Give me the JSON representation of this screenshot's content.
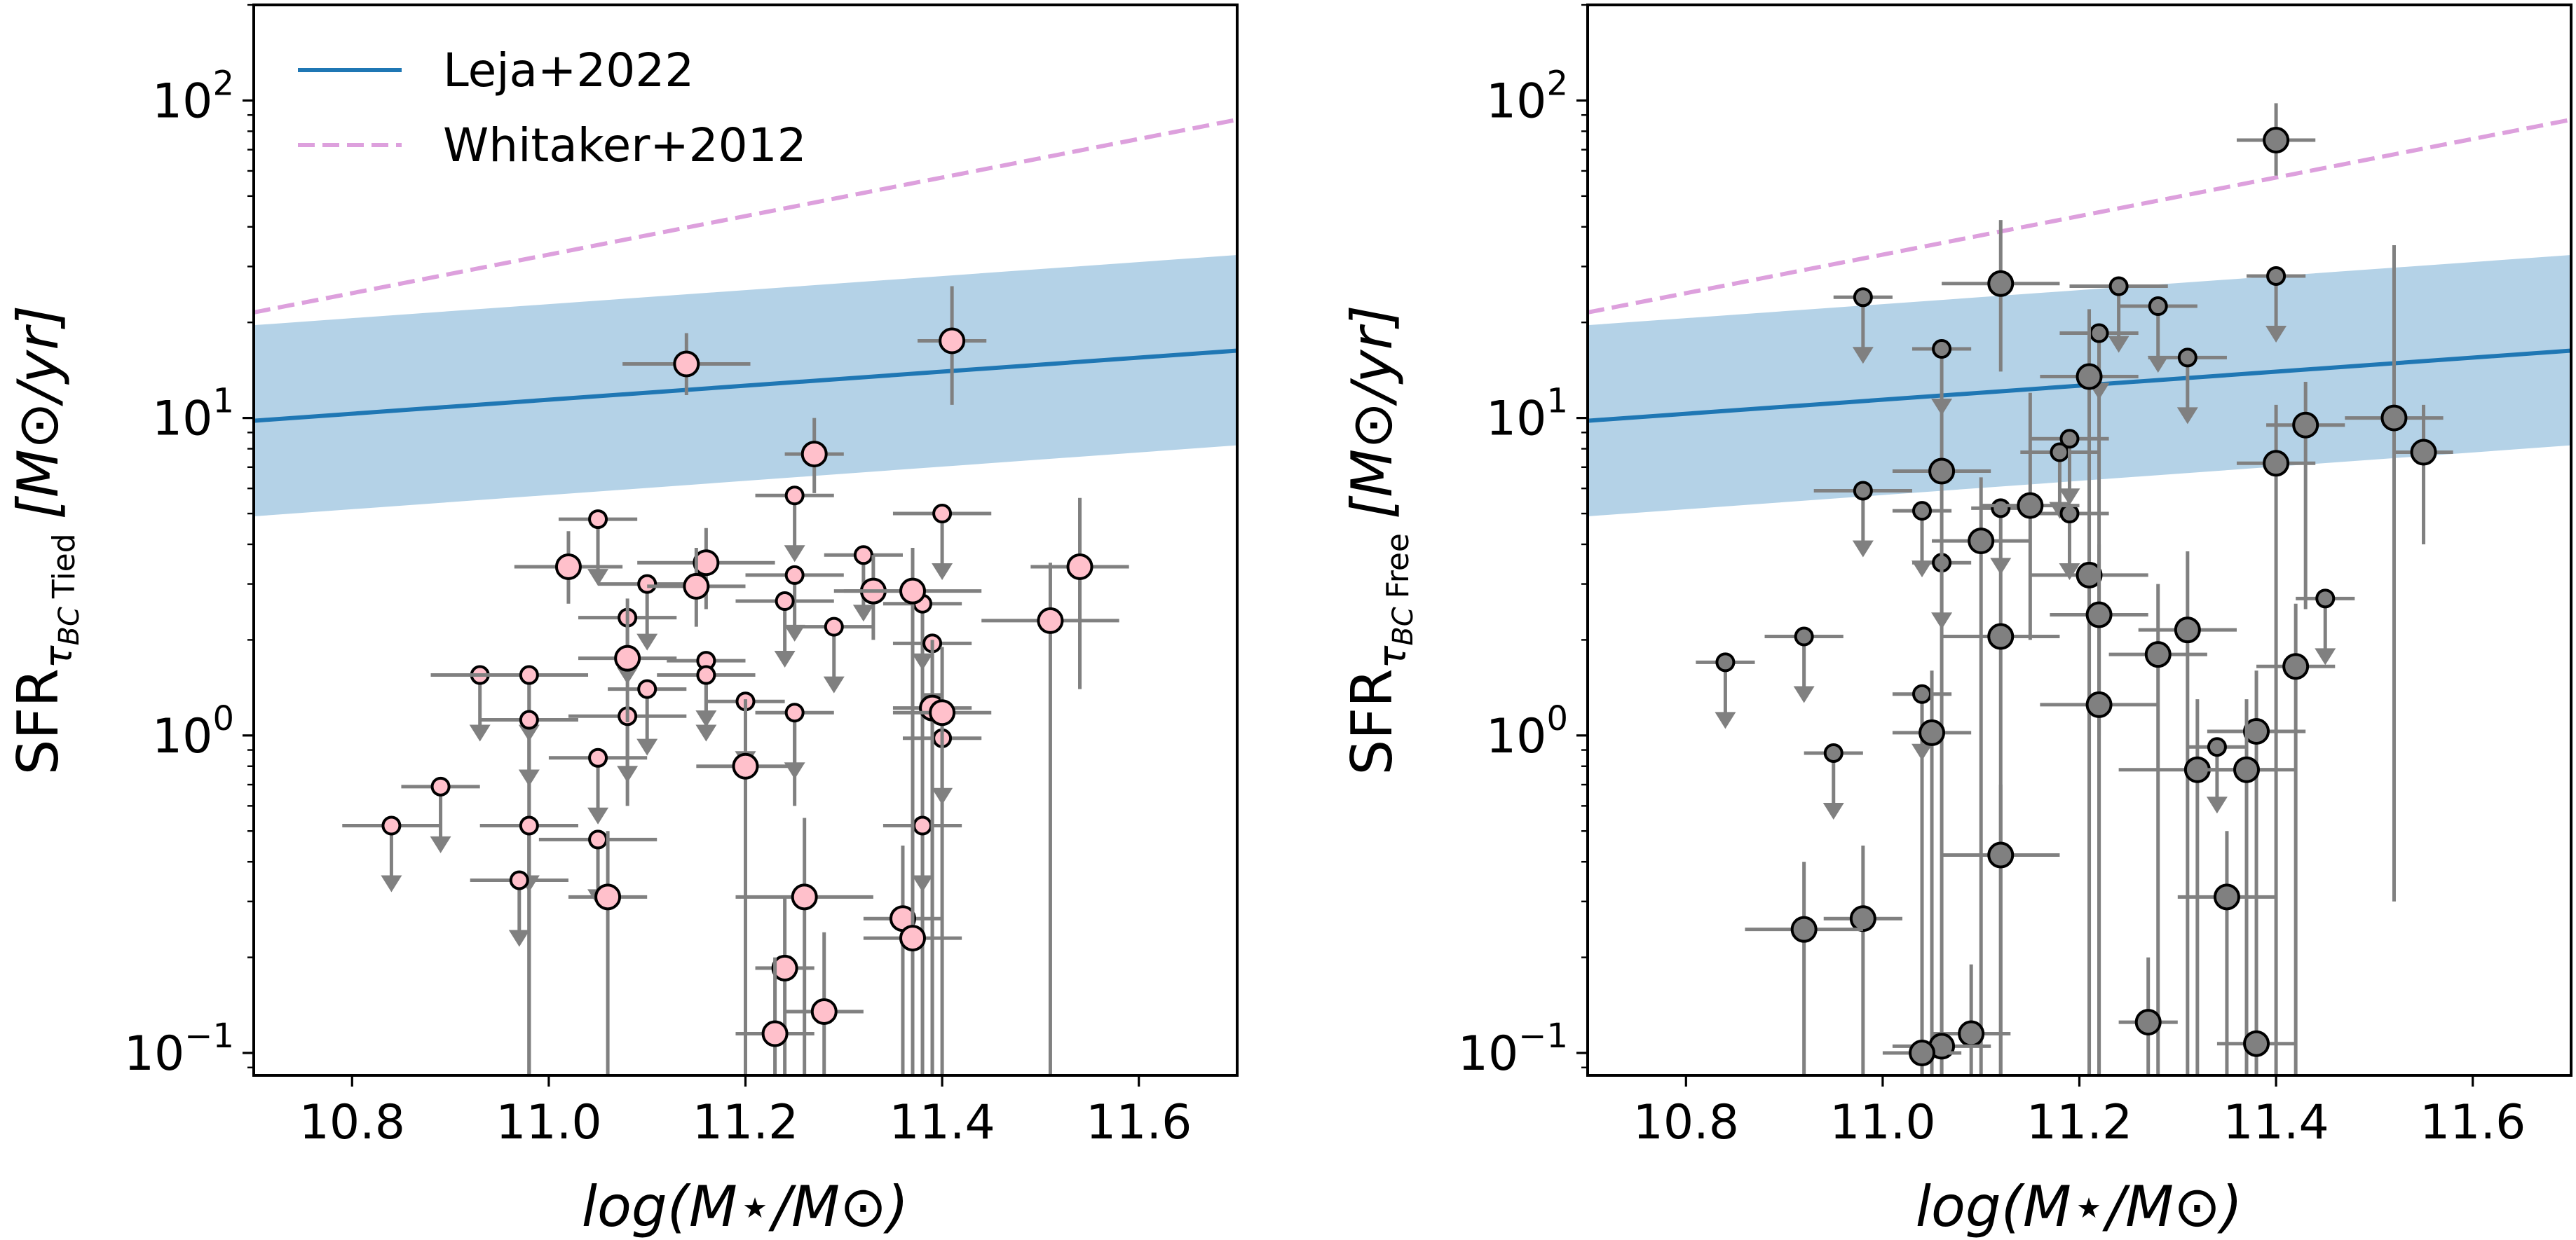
{
  "colors": {
    "leja_line": "#1f77b4",
    "leja_band": "#b4d2e7",
    "whitaker_line": "#dda0dd",
    "err_bar": "#808080",
    "left_marker": "#ffc0cb",
    "right_marker": "#808080"
  },
  "legend": {
    "leja": "Leja+2022",
    "whitaker": "Whitaker+2012"
  },
  "chart_data": [
    {
      "type": "scatter",
      "panel": "left",
      "xlabel": "log(M⋆/M⊙)",
      "ylabel": "SFR_{τBC Tied} [M⊙/yr]",
      "ylabel_main": "SFR",
      "ylabel_sub": "τ",
      "ylabel_subsub": "BC",
      "ylabel_sub_tail": "Tied",
      "ylabel_unit": "[M⊙/yr]",
      "xlim": [
        10.7,
        11.7
      ],
      "ylim": [
        0.085,
        200
      ],
      "yscale": "log",
      "xticks": [
        "10.8",
        "11.0",
        "11.2",
        "11.4",
        "11.6"
      ],
      "yticks": [
        {
          "value": 100,
          "base": "10",
          "exp": "2"
        },
        {
          "value": 10,
          "base": "10",
          "exp": "1"
        },
        {
          "value": 1,
          "base": "10",
          "exp": "0"
        },
        {
          "value": 0.1,
          "base": "10",
          "exp": "−1"
        }
      ],
      "leja": {
        "x": [
          10.7,
          11.7
        ],
        "y": [
          9.8,
          16.3
        ],
        "lower": [
          4.9,
          8.2
        ],
        "upper": [
          19.6,
          32.6
        ]
      },
      "whitaker": {
        "x": [
          10.7,
          11.7
        ],
        "y": [
          21.5,
          87
        ]
      },
      "detections": [
        {
          "x": 11.14,
          "y": 14.8,
          "xerr": 0.065,
          "ylo": 11.8,
          "yhi": 18.5
        },
        {
          "x": 11.41,
          "y": 17.5,
          "xerr": 0.035,
          "ylo": 11.0,
          "yhi": 26.0
        },
        {
          "x": 11.27,
          "y": 7.7,
          "xerr": 0.03,
          "ylo": 5.8,
          "yhi": 10.0
        },
        {
          "x": 11.02,
          "y": 3.4,
          "xerr": 0.055,
          "ylo": 2.6,
          "yhi": 4.4
        },
        {
          "x": 11.16,
          "y": 3.5,
          "xerr": 0.07,
          "ylo": 2.5,
          "yhi": 4.5
        },
        {
          "x": 11.15,
          "y": 2.95,
          "xerr": 0.05,
          "ylo": 2.2,
          "yhi": 3.9
        },
        {
          "x": 11.33,
          "y": 2.85,
          "xerr": 0.04,
          "ylo": 2.0,
          "yhi": 3.7
        },
        {
          "x": 11.37,
          "y": 2.85,
          "xerr": 0.07,
          "ylo": 0.085,
          "yhi": 3.9
        },
        {
          "x": 11.54,
          "y": 3.4,
          "xerr": 0.05,
          "ylo": 1.4,
          "yhi": 5.6
        },
        {
          "x": 11.51,
          "y": 2.3,
          "xerr": 0.07,
          "ylo": 0.085,
          "yhi": 3.5
        },
        {
          "x": 11.08,
          "y": 1.75,
          "xerr": 0.05,
          "ylo": 1.1,
          "yhi": 2.7
        },
        {
          "x": 11.39,
          "y": 1.22,
          "xerr": 0.04,
          "ylo": 0.085,
          "yhi": 2.0
        },
        {
          "x": 11.4,
          "y": 1.18,
          "xerr": 0.05,
          "ylo": 0.085,
          "yhi": 1.9
        },
        {
          "x": 11.2,
          "y": 0.8,
          "xerr": 0.05,
          "ylo": 0.085,
          "yhi": 1.3
        },
        {
          "x": 11.06,
          "y": 0.31,
          "xerr": 0.04,
          "ylo": 0.085,
          "yhi": 0.5
        },
        {
          "x": 11.26,
          "y": 0.31,
          "xerr": 0.07,
          "ylo": 0.085,
          "yhi": 0.55
        },
        {
          "x": 11.36,
          "y": 0.265,
          "xerr": 0.04,
          "ylo": 0.085,
          "yhi": 0.45
        },
        {
          "x": 11.37,
          "y": 0.23,
          "xerr": 0.05,
          "ylo": 0.085,
          "yhi": 0.4
        },
        {
          "x": 11.24,
          "y": 0.185,
          "xerr": 0.03,
          "ylo": 0.085,
          "yhi": 0.31
        },
        {
          "x": 11.28,
          "y": 0.135,
          "xerr": 0.04,
          "ylo": 0.085,
          "yhi": 0.24
        },
        {
          "x": 11.23,
          "y": 0.115,
          "xerr": 0.04,
          "ylo": 0.085,
          "yhi": 0.2
        }
      ],
      "upper_limits": [
        {
          "x": 10.84,
          "y": 0.52,
          "xerr": 0.05
        },
        {
          "x": 10.89,
          "y": 0.69,
          "xerr": 0.04
        },
        {
          "x": 10.93,
          "y": 1.55,
          "xerr": 0.05
        },
        {
          "x": 10.98,
          "y": 1.55,
          "xerr": 0.06,
          "ylo": 0.085
        },
        {
          "x": 10.98,
          "y": 1.12,
          "xerr": 0.05,
          "ylo": 0.085
        },
        {
          "x": 10.98,
          "y": 0.52,
          "xerr": 0.05,
          "ylo": 0.085
        },
        {
          "x": 10.97,
          "y": 0.35,
          "xerr": 0.05
        },
        {
          "x": 11.05,
          "y": 4.8,
          "xerr": 0.04
        },
        {
          "x": 11.1,
          "y": 3.0,
          "xerr": 0.05
        },
        {
          "x": 11.08,
          "y": 2.35,
          "xerr": 0.05
        },
        {
          "x": 11.1,
          "y": 1.4,
          "xerr": 0.04
        },
        {
          "x": 11.08,
          "y": 1.15,
          "xerr": 0.06,
          "ylo": 0.6
        },
        {
          "x": 11.05,
          "y": 0.85,
          "xerr": 0.05
        },
        {
          "x": 11.05,
          "y": 0.47,
          "xerr": 0.06
        },
        {
          "x": 11.16,
          "y": 1.72,
          "xerr": 0.04
        },
        {
          "x": 11.16,
          "y": 1.55,
          "xerr": 0.05
        },
        {
          "x": 11.2,
          "y": 1.28,
          "xerr": 0.04,
          "ylo": 0.7
        },
        {
          "x": 11.25,
          "y": 5.7,
          "xerr": 0.04
        },
        {
          "x": 11.25,
          "y": 3.2,
          "xerr": 0.05
        },
        {
          "x": 11.24,
          "y": 2.65,
          "xerr": 0.05
        },
        {
          "x": 11.25,
          "y": 1.18,
          "xerr": 0.04,
          "ylo": 0.6
        },
        {
          "x": 11.32,
          "y": 3.7,
          "xerr": 0.04
        },
        {
          "x": 11.29,
          "y": 2.2,
          "xerr": 0.04
        },
        {
          "x": 11.4,
          "y": 5.0,
          "xerr": 0.05
        },
        {
          "x": 11.38,
          "y": 2.6,
          "xerr": 0.04,
          "ylo": 0.085
        },
        {
          "x": 11.39,
          "y": 1.95,
          "xerr": 0.04,
          "ylo": 0.085
        },
        {
          "x": 11.4,
          "y": 0.98,
          "xerr": 0.04
        },
        {
          "x": 11.38,
          "y": 0.52,
          "xerr": 0.04,
          "ylo": 0.085
        }
      ]
    },
    {
      "type": "scatter",
      "panel": "right",
      "xlabel": "log(M⋆/M⊙)",
      "ylabel": "SFR_{τBC Free} [M⊙/yr]",
      "ylabel_main": "SFR",
      "ylabel_sub": "τ",
      "ylabel_subsub": "BC",
      "ylabel_sub_tail": "Free",
      "ylabel_unit": "[M⊙/yr]",
      "xlim": [
        10.7,
        11.7
      ],
      "ylim": [
        0.085,
        200
      ],
      "yscale": "log",
      "xticks": [
        "10.8",
        "11.0",
        "11.2",
        "11.4",
        "11.6"
      ],
      "yticks": [
        {
          "value": 100,
          "base": "10",
          "exp": "2"
        },
        {
          "value": 10,
          "base": "10",
          "exp": "1"
        },
        {
          "value": 1,
          "base": "10",
          "exp": "0"
        },
        {
          "value": 0.1,
          "base": "10",
          "exp": "−1"
        }
      ],
      "leja": {
        "x": [
          10.7,
          11.7
        ],
        "y": [
          9.8,
          16.3
        ],
        "lower": [
          4.9,
          8.2
        ],
        "upper": [
          19.6,
          32.6
        ]
      },
      "whitaker": {
        "x": [
          10.7,
          11.7
        ],
        "y": [
          21.5,
          87
        ]
      },
      "detections": [
        {
          "x": 11.4,
          "y": 75,
          "xerr": 0.04,
          "ylo": 58,
          "yhi": 98
        },
        {
          "x": 11.12,
          "y": 26.5,
          "xerr": 0.06,
          "ylo": 14,
          "yhi": 42
        },
        {
          "x": 11.21,
          "y": 13.5,
          "xerr": 0.05,
          "ylo": 0.085,
          "yhi": 22
        },
        {
          "x": 11.06,
          "y": 6.8,
          "xerr": 0.05,
          "ylo": 0.085,
          "yhi": 11
        },
        {
          "x": 11.4,
          "y": 7.2,
          "xerr": 0.04,
          "ylo": 0.085,
          "yhi": 11
        },
        {
          "x": 11.43,
          "y": 9.5,
          "xerr": 0.04,
          "ylo": 2.5,
          "yhi": 13
        },
        {
          "x": 11.52,
          "y": 10.0,
          "xerr": 0.05,
          "ylo": 0.3,
          "yhi": 35
        },
        {
          "x": 11.55,
          "y": 7.8,
          "xerr": 0.03,
          "ylo": 4.0,
          "yhi": 11
        },
        {
          "x": 11.15,
          "y": 5.3,
          "xerr": 0.05,
          "ylo": 2.0,
          "yhi": 12
        },
        {
          "x": 11.1,
          "y": 4.1,
          "xerr": 0.05,
          "ylo": 0.085,
          "yhi": 6.5
        },
        {
          "x": 11.21,
          "y": 3.2,
          "xerr": 0.06,
          "ylo": 0.085,
          "yhi": 5.5
        },
        {
          "x": 11.22,
          "y": 2.4,
          "xerr": 0.05,
          "ylo": 1.0,
          "yhi": 4.0
        },
        {
          "x": 11.12,
          "y": 2.05,
          "xerr": 0.06,
          "ylo": 0.085,
          "yhi": 3.5
        },
        {
          "x": 11.31,
          "y": 2.15,
          "xerr": 0.05,
          "ylo": 0.085,
          "yhi": 3.8
        },
        {
          "x": 11.28,
          "y": 1.8,
          "xerr": 0.05,
          "ylo": 0.085,
          "yhi": 3.0
        },
        {
          "x": 11.42,
          "y": 1.65,
          "xerr": 0.04,
          "ylo": 0.085,
          "yhi": 2.6
        },
        {
          "x": 11.22,
          "y": 1.25,
          "xerr": 0.06,
          "ylo": 0.085,
          "yhi": 2.0
        },
        {
          "x": 11.05,
          "y": 1.02,
          "xerr": 0.04,
          "ylo": 0.085,
          "yhi": 1.6
        },
        {
          "x": 11.38,
          "y": 1.03,
          "xerr": 0.05,
          "ylo": 0.085,
          "yhi": 1.6
        },
        {
          "x": 11.32,
          "y": 0.78,
          "xerr": 0.08,
          "ylo": 0.085,
          "yhi": 1.3
        },
        {
          "x": 11.37,
          "y": 0.78,
          "xerr": 0.05,
          "ylo": 0.085,
          "yhi": 1.3
        },
        {
          "x": 11.12,
          "y": 0.42,
          "xerr": 0.06,
          "ylo": 0.085,
          "yhi": 0.7
        },
        {
          "x": 11.35,
          "y": 0.31,
          "xerr": 0.05,
          "ylo": 0.085,
          "yhi": 0.5
        },
        {
          "x": 10.98,
          "y": 0.265,
          "xerr": 0.04,
          "ylo": 0.085,
          "yhi": 0.45
        },
        {
          "x": 10.92,
          "y": 0.245,
          "xerr": 0.06,
          "ylo": 0.085,
          "yhi": 0.4
        },
        {
          "x": 11.27,
          "y": 0.125,
          "xerr": 0.03,
          "ylo": 0.085,
          "yhi": 0.2
        },
        {
          "x": 11.09,
          "y": 0.115,
          "xerr": 0.04,
          "ylo": 0.085,
          "yhi": 0.19
        },
        {
          "x": 11.06,
          "y": 0.105,
          "xerr": 0.05,
          "ylo": 0.085,
          "yhi": 0.17
        },
        {
          "x": 11.04,
          "y": 0.1,
          "xerr": 0.04,
          "ylo": 0.085,
          "yhi": 0.16
        },
        {
          "x": 11.38,
          "y": 0.107,
          "xerr": 0.04,
          "ylo": 0.085,
          "yhi": 0.17
        }
      ],
      "upper_limits": [
        {
          "x": 10.84,
          "y": 1.7,
          "xerr": 0.03
        },
        {
          "x": 10.92,
          "y": 2.05,
          "xerr": 0.04
        },
        {
          "x": 10.95,
          "y": 0.88,
          "xerr": 0.03
        },
        {
          "x": 10.98,
          "y": 24,
          "xerr": 0.03
        },
        {
          "x": 10.98,
          "y": 5.9,
          "xerr": 0.05
        },
        {
          "x": 11.04,
          "y": 5.1,
          "xerr": 0.03
        },
        {
          "x": 11.06,
          "y": 16.5,
          "xerr": 0.03
        },
        {
          "x": 11.06,
          "y": 3.5,
          "xerr": 0.03
        },
        {
          "x": 11.04,
          "y": 1.35,
          "xerr": 0.03,
          "ylo": 0.085
        },
        {
          "x": 11.12,
          "y": 5.2,
          "xerr": 0.03
        },
        {
          "x": 11.18,
          "y": 7.8,
          "xerr": 0.04
        },
        {
          "x": 11.19,
          "y": 8.6,
          "xerr": 0.04
        },
        {
          "x": 11.22,
          "y": 18.5,
          "xerr": 0.04,
          "ylo": 0.085
        },
        {
          "x": 11.24,
          "y": 26,
          "xerr": 0.05
        },
        {
          "x": 11.28,
          "y": 22.5,
          "xerr": 0.04
        },
        {
          "x": 11.31,
          "y": 15.5,
          "xerr": 0.04
        },
        {
          "x": 11.19,
          "y": 5.0,
          "xerr": 0.04
        },
        {
          "x": 11.4,
          "y": 28,
          "xerr": 0.03
        },
        {
          "x": 11.34,
          "y": 0.92,
          "xerr": 0.03
        },
        {
          "x": 11.45,
          "y": 2.7,
          "xerr": 0.03
        }
      ]
    }
  ]
}
